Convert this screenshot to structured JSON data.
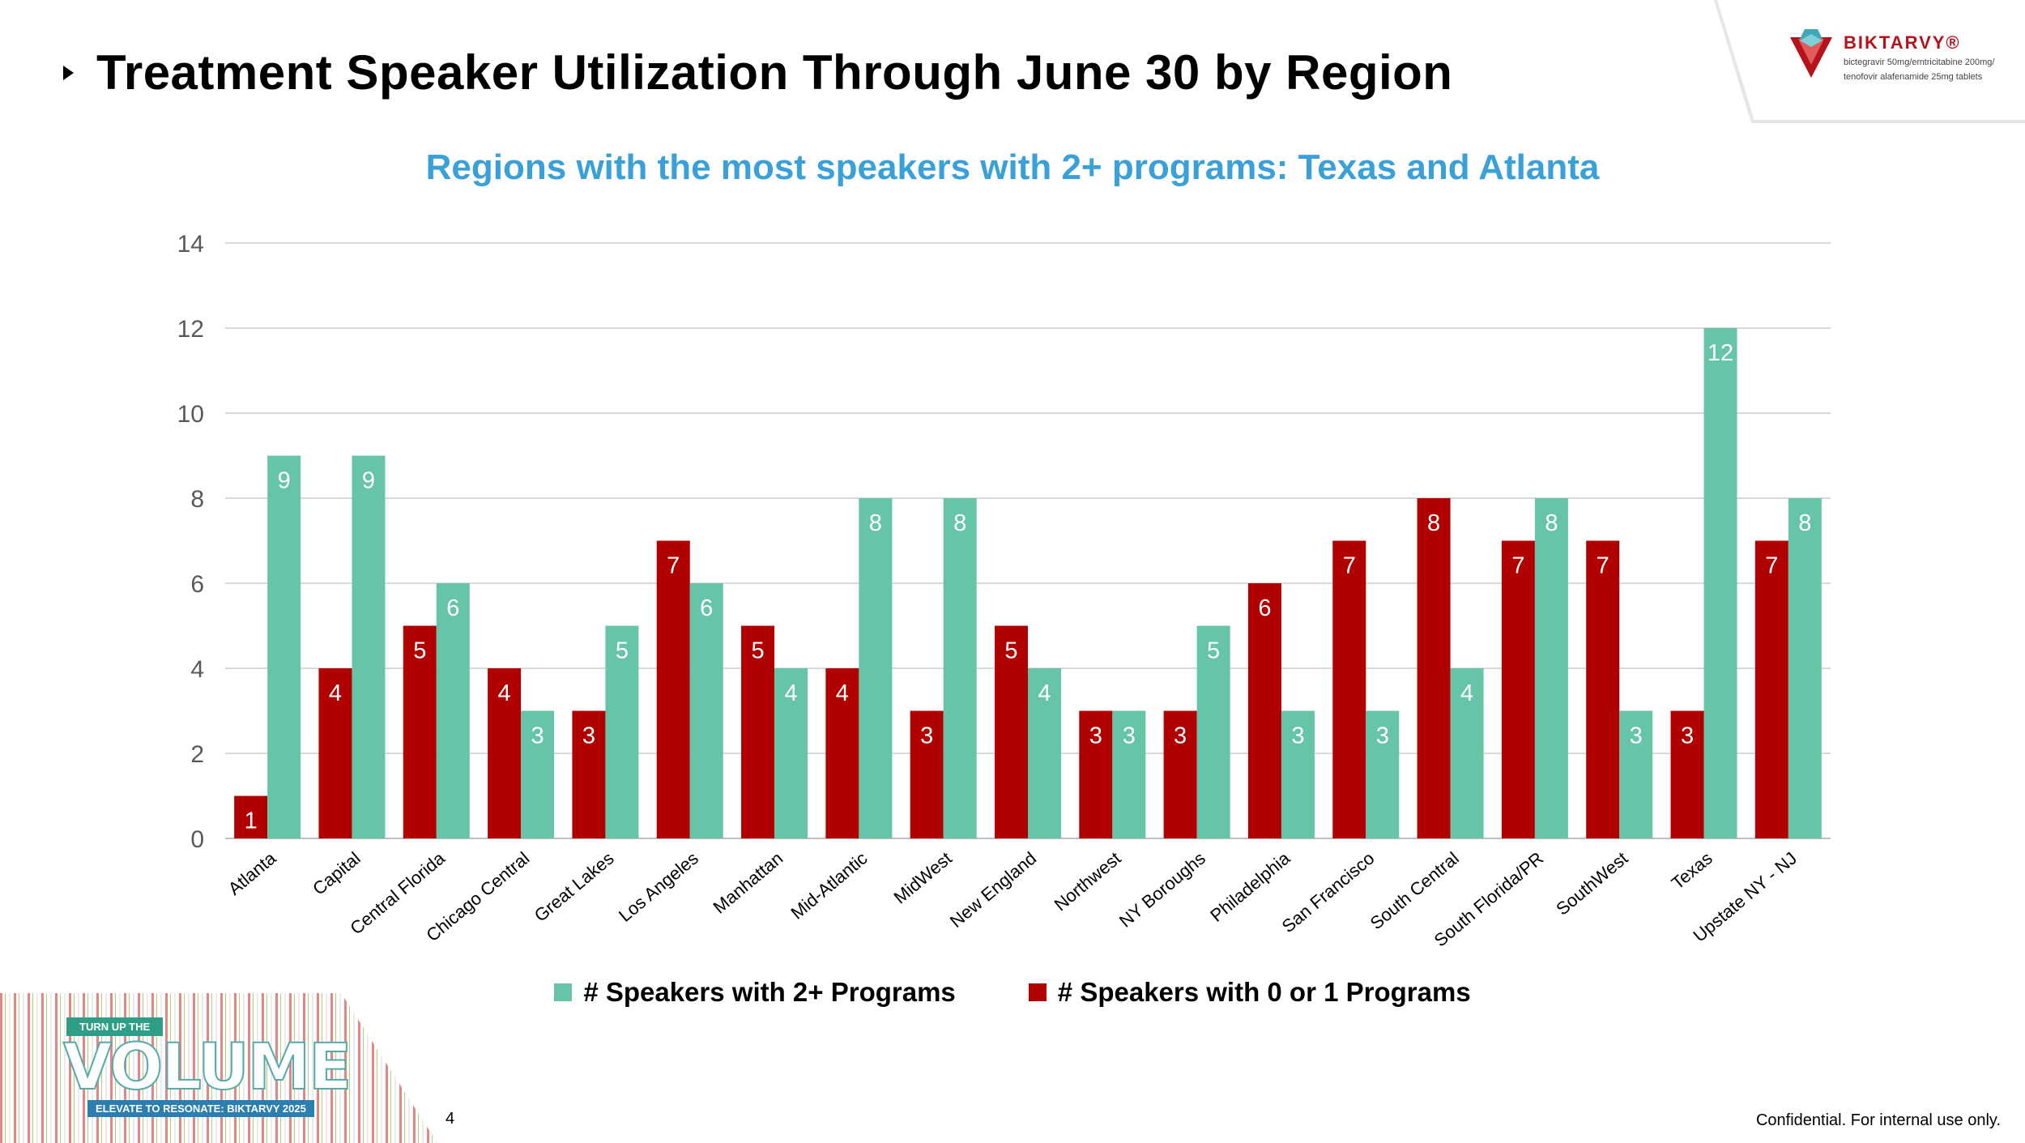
{
  "header": {
    "title": "Treatment Speaker Utilization Through June 30 by Region"
  },
  "logo": {
    "brand": "BIKTARVY®",
    "sub_line1": "bictegravir 50mg/emtricitabine 200mg/",
    "sub_line2": "tenofovir alafenamide 25mg tablets"
  },
  "chart_data": {
    "type": "bar",
    "title": "Regions with the most speakers with 2+ programs: Texas and Atlanta",
    "xlabel": "",
    "ylabel": "",
    "ylim": [
      0,
      14
    ],
    "yticks": [
      0,
      2,
      4,
      6,
      8,
      10,
      12,
      14
    ],
    "grid": true,
    "legend_position": "bottom",
    "categories": [
      "Atlanta",
      "Capital",
      "Central Florida",
      "Chicago Central",
      "Great Lakes",
      "Los Angeles",
      "Manhattan",
      "Mid-Atlantic",
      "MidWest",
      "New England",
      "Northwest",
      "NY Boroughs",
      "Philadelphia",
      "San Francisco",
      "South Central",
      "South Florida/PR",
      "SouthWest",
      "Texas",
      "Upstate NY - NJ"
    ],
    "series": [
      {
        "name": "# Speakers with 0 or 1 Programs",
        "color": "#b00000",
        "values": [
          1,
          4,
          5,
          4,
          3,
          7,
          5,
          4,
          3,
          5,
          3,
          3,
          6,
          7,
          8,
          7,
          7,
          3,
          7
        ]
      },
      {
        "name": "# Speakers with 2+ Programs",
        "color": "#66c5a8",
        "values": [
          9,
          9,
          6,
          3,
          5,
          6,
          4,
          8,
          8,
          4,
          3,
          5,
          3,
          3,
          4,
          8,
          3,
          12,
          8
        ]
      }
    ]
  },
  "legend": {
    "items": [
      {
        "label": "# Speakers with 2+ Programs",
        "color": "#66c5a8"
      },
      {
        "label": "# Speakers with 0 or 1 Programs",
        "color": "#b00000"
      }
    ]
  },
  "banner": {
    "top_label": "TURN UP THE",
    "main_label": "VOLUME",
    "bottom_label": "ELEVATE TO RESONATE: BIKTARVY 2025"
  },
  "footer": {
    "page_number": "4",
    "note": "Confidential. For internal use only."
  }
}
